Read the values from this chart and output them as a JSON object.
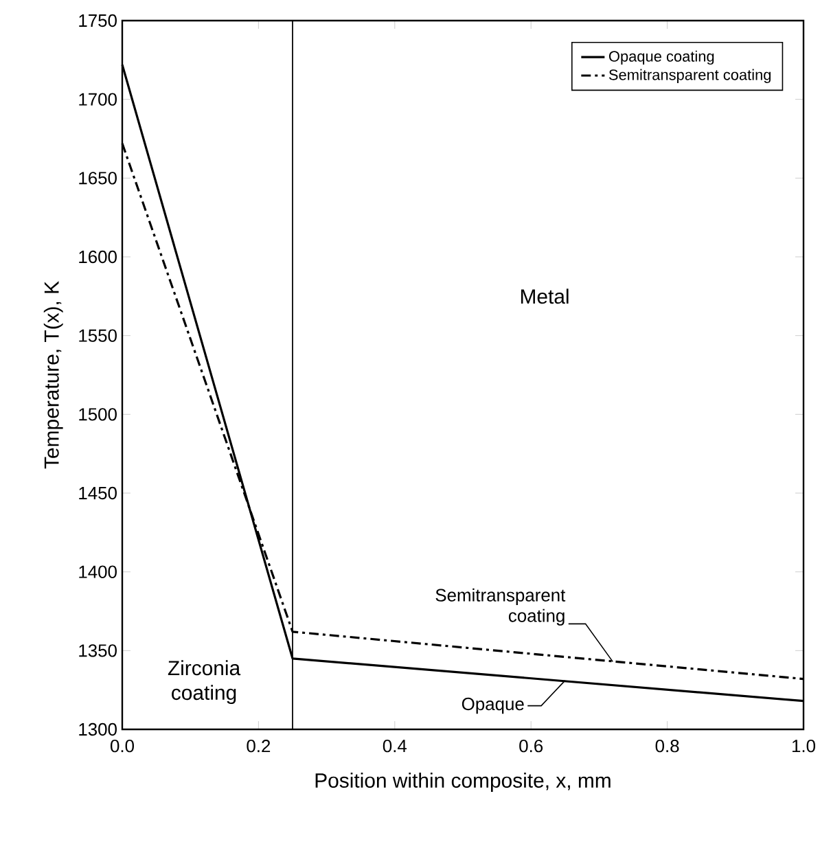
{
  "chart_data": {
    "type": "line",
    "xlabel": "Position within composite, x, mm",
    "ylabel": "Temperature, T(x), K",
    "xlim": [
      0,
      1.0
    ],
    "ylim": [
      1300,
      1750
    ],
    "xticks": [
      {
        "value": 0,
        "label": "0.0"
      },
      {
        "value": 0.2,
        "label": "0.2"
      },
      {
        "value": 0.4,
        "label": "0.4"
      },
      {
        "value": 0.6,
        "label": "0.6"
      },
      {
        "value": 0.8,
        "label": "0.8"
      },
      {
        "value": 1.0,
        "label": "1.0"
      }
    ],
    "yticks": [
      1300,
      1350,
      1400,
      1450,
      1500,
      1550,
      1600,
      1650,
      1700,
      1750
    ],
    "series": [
      {
        "name": "Opaque coating",
        "color": "#000000",
        "line_style": "solid",
        "x": [
          0,
          0.25,
          1.0
        ],
        "values": [
          1722,
          1345,
          1318
        ]
      },
      {
        "name": "Semitransparent coating",
        "color": "#000000",
        "line_style": "dashdot",
        "x": [
          0,
          0.25,
          1.0
        ],
        "values": [
          1672,
          1362,
          1332
        ]
      }
    ],
    "ref_lines": [
      {
        "axis": "x",
        "value": 0.25,
        "color": "#000000"
      }
    ],
    "annotations": [
      "Metal",
      "Zirconia coating",
      {
        "text": "Semitransparent coating",
        "x": 0.72,
        "y": 1343
      },
      {
        "text": "Opaque",
        "x": 0.65,
        "y": 1331
      }
    ],
    "legend": "top right",
    "grid": false,
    "marker": "none"
  }
}
